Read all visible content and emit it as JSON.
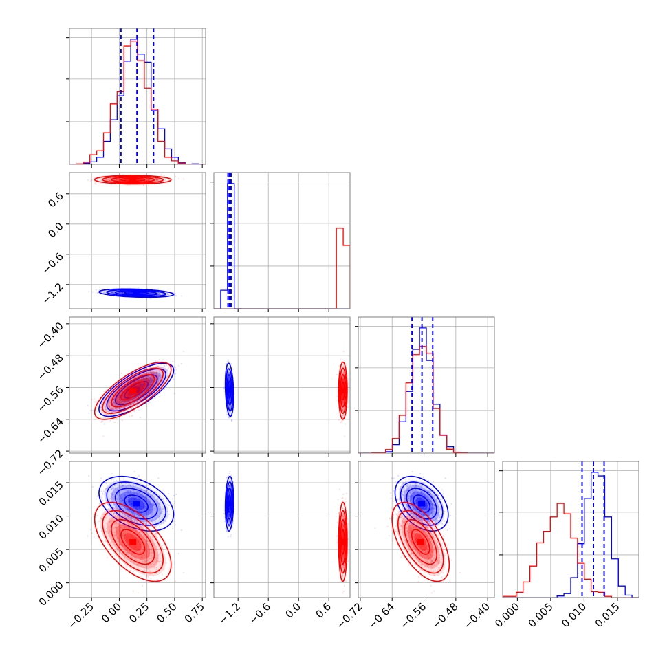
{
  "chart_data": {
    "type": "corner",
    "grid": true,
    "series": [
      {
        "name": "",
        "color": "#0000ff",
        "role": "posterior samples with 1D histograms, 2D density histograms, scatter points and 4 contour levels"
      },
      {
        "name": "",
        "color": "#ff0000",
        "role": "posterior samples with 1D histograms, 2D density histograms, scatter points and 4 contour levels"
      }
    ],
    "parameters": [
      {
        "range": [
          -0.45,
          0.78
        ],
        "tick_values": [
          -0.25,
          0.0,
          0.25,
          0.5,
          0.75
        ],
        "tick_labels": [
          "−0.25",
          "0.00",
          "0.25",
          "0.50",
          "0.75"
        ],
        "quantile_lines_blue": [
          0.015,
          0.16,
          0.31
        ],
        "blue": {
          "mean": 0.16,
          "sd": 0.145
        },
        "red": {
          "mean": 0.125,
          "sd": 0.14
        }
      },
      {
        "range": [
          -1.68,
          1.02
        ],
        "tick_values": [
          -1.2,
          -0.6,
          0.0,
          0.6
        ],
        "tick_labels": [
          "−1.2",
          "−0.6",
          "0.0",
          "0.6"
        ],
        "quantile_lines_blue": [
          -1.4,
          -1.37,
          -1.34
        ],
        "blue": {
          "mean": -1.37,
          "sd": 0.035
        },
        "red": {
          "mean": 0.88,
          "sd": 0.035
        }
      },
      {
        "range": [
          -0.725,
          -0.383
        ],
        "tick_values": [
          -0.72,
          -0.64,
          -0.56,
          -0.48,
          -0.4
        ],
        "tick_labels": [
          "−0.72",
          "−0.64",
          "−0.56",
          "−0.48",
          "−0.40"
        ],
        "quantile_lines_blue": [
          -0.59,
          -0.565,
          -0.538
        ],
        "blue": {
          "mean": -0.565,
          "sd": 0.028
        },
        "red": {
          "mean": -0.568,
          "sd": 0.03
        }
      },
      {
        "range": [
          -0.0022,
          0.0182
        ],
        "tick_values": [
          0.0,
          0.005,
          0.01,
          0.015
        ],
        "tick_labels": [
          "0.000",
          "0.005",
          "0.010",
          "0.015"
        ],
        "quantile_lines_blue": [
          0.0097,
          0.0114,
          0.013
        ],
        "blue": {
          "mean": 0.0118,
          "sd": 0.0017
        },
        "red": {
          "mean": 0.0061,
          "sd": 0.0022
        }
      }
    ],
    "correlations": {
      "blue": {
        "0-1": -0.35,
        "0-2": 0.75,
        "0-3": -0.2,
        "1-2": 0.0,
        "1-3": 0.0,
        "2-3": -0.3
      },
      "red": {
        "0-1": 0.0,
        "0-2": 0.75,
        "0-3": -0.35,
        "1-2": 0.0,
        "1-3": 0.0,
        "2-3": -0.4
      }
    },
    "hist_bins": 20,
    "hist_peak_ratio_red_to_blue_param2": 1.3
  }
}
